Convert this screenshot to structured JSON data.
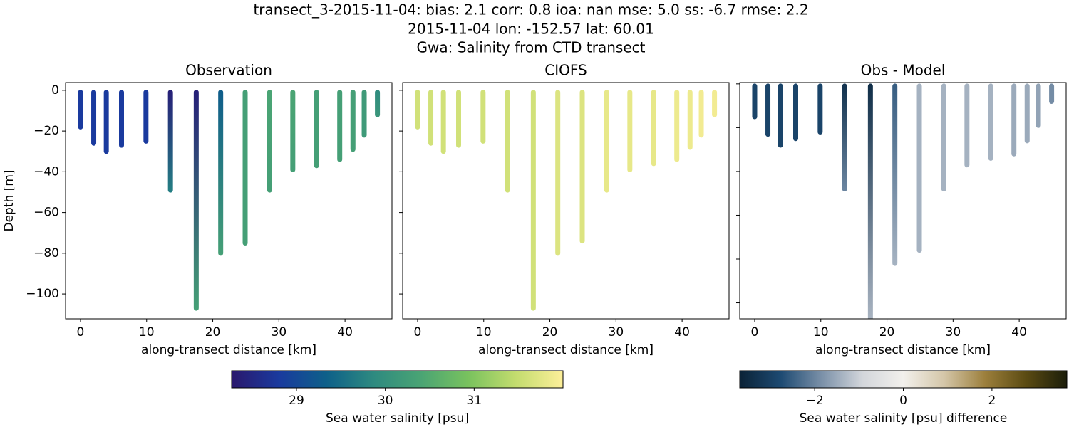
{
  "figure_title": [
    "transect_3-2015-11-04: bias: 2.1  corr: 0.8  ioa: nan  mse: 5.0  ss: -6.7  rmse: 2.2",
    "2015-11-04 lon: -152.57 lat: 60.01",
    "Gwa: Salinity from CTD transect"
  ],
  "chart_data": [
    {
      "type": "scatter",
      "title": "Observation",
      "xlabel": "along-transect distance [km]",
      "ylabel": "Depth [m]",
      "colorbar": 0,
      "xlim": [
        -2.26,
        47.1
      ],
      "ylim": [
        -112.2,
        3.8
      ],
      "xticks": [
        0,
        10,
        20,
        30,
        40
      ],
      "yticks": [
        0,
        {
          "value": -20,
          "label": "−20"
        },
        {
          "value": -40,
          "label": "−40"
        },
        {
          "value": -60,
          "label": "−60"
        },
        {
          "value": -80,
          "label": "−80"
        },
        {
          "value": -100,
          "label": "−100"
        }
      ],
      "ytick_labels": true,
      "casts": [
        {
          "x": 0,
          "depth": [
            -1,
            -18
          ],
          "salinity": [
            28.8,
            28.8
          ]
        },
        {
          "x": 2,
          "depth": [
            -1,
            -26
          ],
          "salinity": [
            28.8,
            28.8
          ]
        },
        {
          "x": 3.9,
          "depth": [
            -1,
            -30
          ],
          "salinity": [
            28.8,
            28.8
          ]
        },
        {
          "x": 6.2,
          "depth": [
            -1,
            -27
          ],
          "salinity": [
            28.8,
            28.8
          ]
        },
        {
          "x": 9.9,
          "depth": [
            -1,
            -25
          ],
          "salinity": [
            28.8,
            28.8
          ]
        },
        {
          "x": 13.6,
          "depth": [
            -1,
            -49
          ],
          "salinity": [
            28.4,
            29.7
          ]
        },
        {
          "x": 17.5,
          "depth": [
            -1,
            -107
          ],
          "salinity": [
            28.4,
            30.3
          ]
        },
        {
          "x": 21.2,
          "depth": [
            -1,
            -80
          ],
          "salinity": [
            29.3,
            30.3
          ]
        },
        {
          "x": 24.9,
          "depth": [
            -1,
            -75
          ],
          "salinity": [
            30.3,
            30.3
          ]
        },
        {
          "x": 28.6,
          "depth": [
            -1,
            -49
          ],
          "salinity": [
            30.4,
            30.3
          ]
        },
        {
          "x": 32.1,
          "depth": [
            -1,
            -39
          ],
          "salinity": [
            30.4,
            30.3
          ]
        },
        {
          "x": 35.7,
          "depth": [
            -1,
            -37
          ],
          "salinity": [
            30.3,
            30.3
          ]
        },
        {
          "x": 39.2,
          "depth": [
            -1,
            -34
          ],
          "salinity": [
            30.3,
            30.3
          ]
        },
        {
          "x": 41.2,
          "depth": [
            -1,
            -29
          ],
          "salinity": [
            30.3,
            30.3
          ]
        },
        {
          "x": 42.9,
          "depth": [
            -1,
            -22
          ],
          "salinity": [
            30.2,
            30.2
          ]
        },
        {
          "x": 44.9,
          "depth": [
            -1,
            -12
          ],
          "salinity": [
            29.9,
            30.1
          ]
        }
      ]
    },
    {
      "type": "scatter",
      "title": "CIOFS",
      "xlabel": "along-transect distance [km]",
      "colorbar": 0,
      "xlim": [
        -2.26,
        47.1
      ],
      "ylim": [
        -112.2,
        3.8
      ],
      "xticks": [
        0,
        10,
        20,
        30,
        40
      ],
      "yticks": [
        0,
        -20,
        -40,
        -60,
        -80,
        -100
      ],
      "ytick_labels": false,
      "casts": [
        {
          "x": 0,
          "depth": [
            -1,
            -18
          ],
          "salinity": [
            31.6,
            31.6
          ]
        },
        {
          "x": 2,
          "depth": [
            -1,
            -26
          ],
          "salinity": [
            31.6,
            31.6
          ]
        },
        {
          "x": 3.9,
          "depth": [
            -1,
            -30
          ],
          "salinity": [
            31.6,
            31.6
          ]
        },
        {
          "x": 6.2,
          "depth": [
            -1,
            -27
          ],
          "salinity": [
            31.6,
            31.6
          ]
        },
        {
          "x": 9.9,
          "depth": [
            -1,
            -25
          ],
          "salinity": [
            31.6,
            31.6
          ]
        },
        {
          "x": 13.6,
          "depth": [
            -1,
            -49
          ],
          "salinity": [
            31.6,
            31.6
          ]
        },
        {
          "x": 17.5,
          "depth": [
            -1,
            -107
          ],
          "salinity": [
            31.6,
            31.6
          ]
        },
        {
          "x": 21.2,
          "depth": [
            -1,
            -80
          ],
          "salinity": [
            31.7,
            31.7
          ]
        },
        {
          "x": 24.9,
          "depth": [
            -1,
            -74
          ],
          "salinity": [
            31.7,
            31.7
          ]
        },
        {
          "x": 28.6,
          "depth": [
            -1,
            -49
          ],
          "salinity": [
            31.8,
            31.8
          ]
        },
        {
          "x": 32.1,
          "depth": [
            -1,
            -39
          ],
          "salinity": [
            31.8,
            31.8
          ]
        },
        {
          "x": 35.7,
          "depth": [
            -1,
            -36
          ],
          "salinity": [
            31.8,
            31.8
          ]
        },
        {
          "x": 39.2,
          "depth": [
            -1,
            -34
          ],
          "salinity": [
            31.85,
            31.85
          ]
        },
        {
          "x": 41.2,
          "depth": [
            -1,
            -28
          ],
          "salinity": [
            31.85,
            31.85
          ]
        },
        {
          "x": 42.9,
          "depth": [
            -1,
            -22
          ],
          "salinity": [
            31.9,
            31.9
          ]
        },
        {
          "x": 44.9,
          "depth": [
            -1,
            -12
          ],
          "salinity": [
            31.9,
            31.9
          ]
        }
      ]
    },
    {
      "type": "scatter",
      "title": "Obs - Model",
      "xlabel": "along-transect distance [km]",
      "colorbar": 1,
      "xlim": [
        -2.26,
        47.1
      ],
      "ylim": [
        -107.3,
        0.6
      ],
      "xticks": [
        0,
        10,
        20,
        30,
        40
      ],
      "yticks": [
        0,
        -20,
        -40,
        -60,
        -80,
        -100
      ],
      "ytick_labels": false,
      "casts": [
        {
          "x": 0,
          "depth": [
            -1,
            -15
          ],
          "salinity": [
            -2.9,
            -2.9
          ]
        },
        {
          "x": 2,
          "depth": [
            -1,
            -23
          ],
          "salinity": [
            -2.9,
            -2.9
          ]
        },
        {
          "x": 3.9,
          "depth": [
            -1,
            -28
          ],
          "salinity": [
            -2.9,
            -2.9
          ]
        },
        {
          "x": 6.2,
          "depth": [
            -1,
            -25
          ],
          "salinity": [
            -2.9,
            -2.9
          ]
        },
        {
          "x": 9.9,
          "depth": [
            -1,
            -22
          ],
          "salinity": [
            -2.9,
            -2.9
          ]
        },
        {
          "x": 13.6,
          "depth": [
            -1,
            -48
          ],
          "salinity": [
            -3.3,
            -2
          ]
        },
        {
          "x": 17.5,
          "depth": [
            -1,
            -112
          ],
          "salinity": [
            -3.4,
            -1.3
          ]
        },
        {
          "x": 21.2,
          "depth": [
            -1,
            -82
          ],
          "salinity": [
            -2.5,
            -1.4
          ]
        },
        {
          "x": 24.9,
          "depth": [
            -1,
            -76
          ],
          "salinity": [
            -1.4,
            -1.4
          ]
        },
        {
          "x": 28.6,
          "depth": [
            -1,
            -48
          ],
          "salinity": [
            -1.4,
            -1.4
          ]
        },
        {
          "x": 32.1,
          "depth": [
            -1,
            -37
          ],
          "salinity": [
            -1.4,
            -1.4
          ]
        },
        {
          "x": 35.7,
          "depth": [
            -1,
            -34
          ],
          "salinity": [
            -1.4,
            -1.4
          ]
        },
        {
          "x": 39.2,
          "depth": [
            -1,
            -32
          ],
          "salinity": [
            -1.5,
            -1.5
          ]
        },
        {
          "x": 41.2,
          "depth": [
            -1,
            -26
          ],
          "salinity": [
            -1.5,
            -1.5
          ]
        },
        {
          "x": 42.9,
          "depth": [
            -1,
            -19
          ],
          "salinity": [
            -1.6,
            -1.6
          ]
        },
        {
          "x": 44.9,
          "depth": [
            -1,
            -8
          ],
          "salinity": [
            -1.9,
            -1.9
          ]
        }
      ]
    }
  ],
  "colorbars": [
    {
      "label": "Sea water salinity [psu]",
      "lim": [
        28.27,
        32.0
      ],
      "ticks": [
        29,
        30,
        31
      ],
      "colormap": [
        "#2a186c",
        "#1a3a9e",
        "#0e6089",
        "#2e8a80",
        "#4aa474",
        "#79c25e",
        "#c3dc6e",
        "#fdef9a"
      ]
    },
    {
      "label": "Sea water salinity [psu] difference",
      "lim": [
        -3.69,
        3.69
      ],
      "ticks": [
        {
          "value": -2,
          "label": "−2"
        },
        0,
        2
      ],
      "colormap": [
        "#0b2236",
        "#1d4a72",
        "#7a90a8",
        "#d3d6db",
        "#f2f0ec",
        "#d4c6a8",
        "#9c7f3c",
        "#5b4b12",
        "#1b1d0a"
      ]
    }
  ]
}
